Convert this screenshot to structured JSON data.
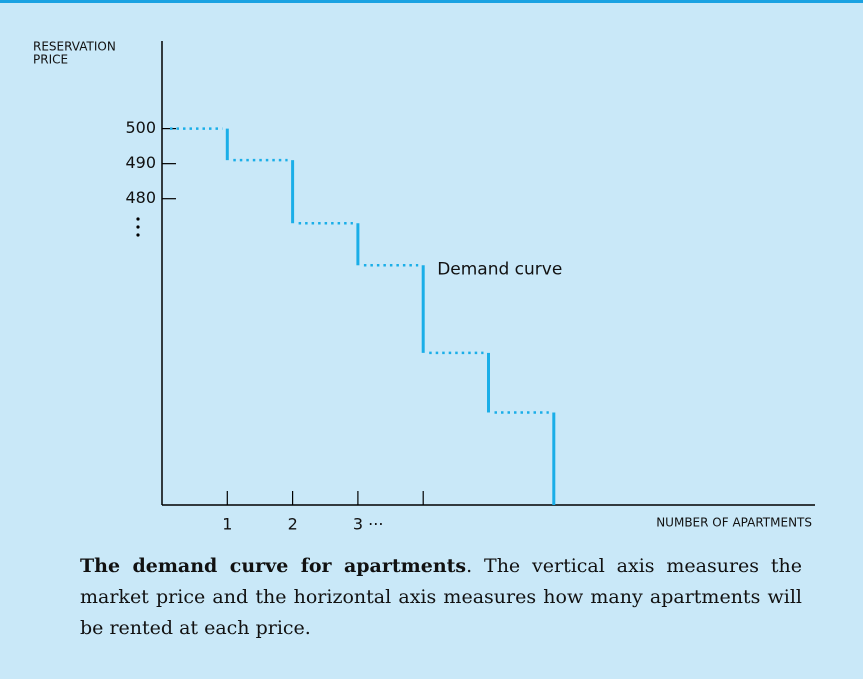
{
  "chart_data": {
    "type": "step",
    "ylabel": [
      "RESERVATION",
      "PRICE"
    ],
    "xlabel": "NUMBER OF APARTMENTS",
    "annotation": "Demand curve",
    "x": [
      1,
      2,
      3,
      4,
      5,
      6
    ],
    "values": [
      500,
      491,
      473,
      461,
      436,
      419
    ],
    "color": "#1aaee8",
    "ylim": [
      392.6,
      525
    ],
    "yticks": [
      480,
      490,
      500
    ],
    "xlim": [
      0,
      10
    ],
    "xticks": [
      1,
      2,
      {
        "value": 3,
        "label": "3 ···"
      },
      {
        "value": 4,
        "label": null
      }
    ],
    "caption": {
      "title": "The demand curve for apartments",
      "text": ". The vertical axis measures the market price and the horizontal axis measures how many apartments will be rented at each price."
    }
  }
}
